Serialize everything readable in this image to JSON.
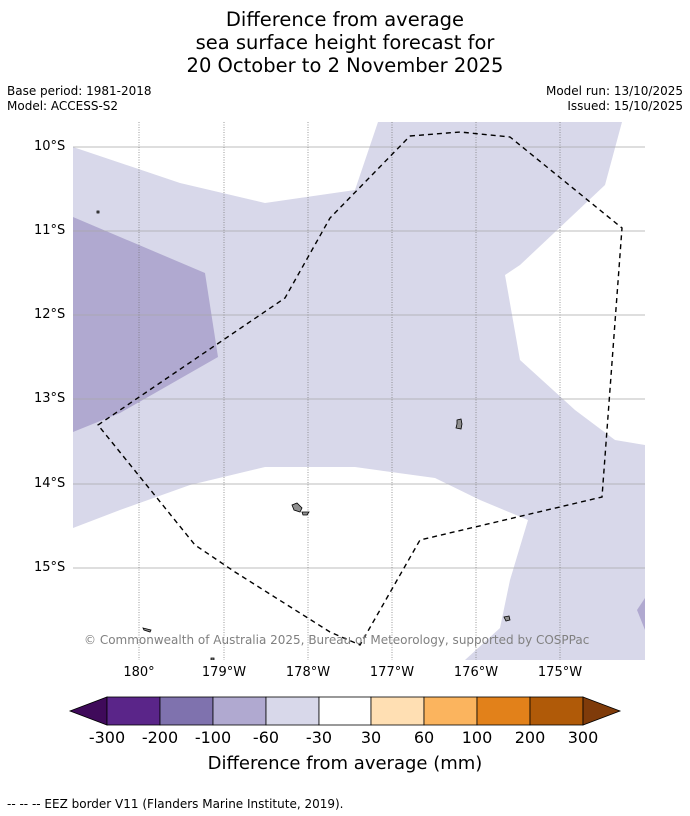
{
  "title": {
    "line1": "Difference from average",
    "line2": "sea surface height forecast for",
    "line3": "20 October to 2 November 2025"
  },
  "meta": {
    "base_period": "Base period: 1981-2018",
    "model": "Model: ACCESS-S2",
    "model_run": "Model run: 13/10/2025",
    "issued": "Issued: 15/10/2025"
  },
  "map": {
    "lat_labels": [
      "10°S",
      "11°S",
      "12°S",
      "13°S",
      "14°S",
      "15°S"
    ],
    "lon_labels": [
      "180°",
      "179°W",
      "178°W",
      "177°W",
      "176°W",
      "175°W"
    ],
    "copyright": "© Commonwealth of Australia 2025, Bureau of Meteorology, supported by COSPPac",
    "colors": {
      "light_neg": "#d8d8ea",
      "mid_neg": "#b0a9d0",
      "island": "#909090",
      "eez": "#000000"
    }
  },
  "colorbar": {
    "ticks": [
      "-300",
      "-200",
      "-100",
      "-60",
      "-30",
      "30",
      "60",
      "100",
      "200",
      "300"
    ],
    "colors": [
      "#3f0a5a",
      "#5a2589",
      "#7f72ae",
      "#b0a9d0",
      "#d8d8ea",
      "#ffffff",
      "#ffdfb3",
      "#fbb45e",
      "#e2811a",
      "#b05a08",
      "#7f3b0a"
    ],
    "title": "Difference from average (mm)"
  },
  "footer": "--  --  -- EEZ border V11 (Flanders Marine Institute, 2019)."
}
